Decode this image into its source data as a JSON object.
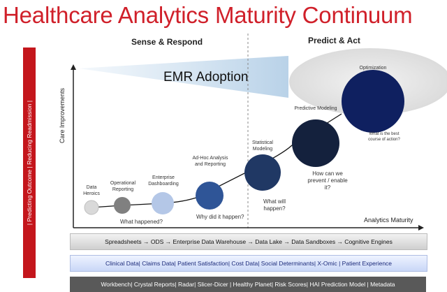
{
  "title": "Healthcare Analytics Maturity Continuum",
  "sections": {
    "left": "Sense & Respond",
    "right": "Predict & Act"
  },
  "sidebar_text": "| Predicting Outcome | Reducing Readmission |",
  "axes": {
    "y": "Care Improvements",
    "x": "Analytics Maturity"
  },
  "emr_label": "EMR Adoption",
  "stages": [
    {
      "label": "Data\nHeroics",
      "color": "#d9d9d9"
    },
    {
      "label": "Operational\nReporting",
      "color": "#808080"
    },
    {
      "label": "Enterprise\nDashboarding",
      "color": "#b4c7e7"
    },
    {
      "label": "Ad-Hoc Analysis\nand Reporting",
      "color": "#2f5597"
    },
    {
      "label": "Statistical\nModeling",
      "color": "#203864"
    },
    {
      "label": "Predictive Modeling",
      "color": "#14213d"
    },
    {
      "label": "Optimization",
      "color": "#0f2060"
    }
  ],
  "questions": {
    "q1": "What happened?",
    "q2": "Why did it happen?",
    "q3": "What will\nhappen?",
    "q4": "How can we\nprevent / enable\nit?",
    "q5": "What is the best\ncourse of action?"
  },
  "bands": {
    "band1": "Spreadsheets → ODS → Enterprise Data Warehouse → Data Lake → Data Sandboxes → Cognitive Engines",
    "band2": "Clinical Data| Claims Data| Patient Satisfaction| Cost Data| Social Determinants| X-Omic | Patient Experience",
    "band3": "Workbench| Crystal Reports| Radar| Slicer-Dicer | Healthy Planet| Risk Scores| HAI Prediction Model | Metadata"
  }
}
